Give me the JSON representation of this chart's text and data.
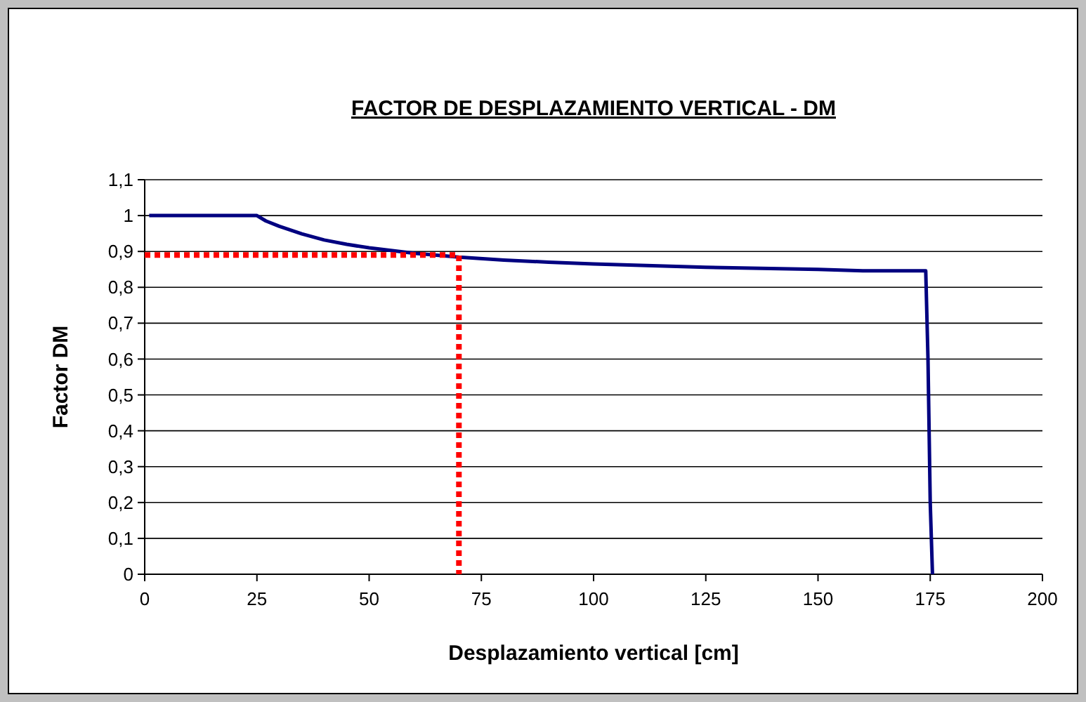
{
  "chart_data": {
    "type": "line",
    "title": "FACTOR DE DESPLAZAMIENTO VERTICAL - DM",
    "xlabel": "Desplazamiento vertical [cm]",
    "ylabel": "Factor DM",
    "xlim": [
      0,
      200
    ],
    "xticks": [
      0,
      25,
      50,
      75,
      100,
      125,
      150,
      175,
      200
    ],
    "ylim": [
      0,
      1.1
    ],
    "yticks": [
      "0",
      {
        "value": 0.1,
        "label": "0,1"
      },
      {
        "value": 0.2,
        "label": "0,2"
      },
      {
        "value": 0.3,
        "label": "0,3"
      },
      {
        "value": 0.4,
        "label": "0,4"
      },
      {
        "value": 0.5,
        "label": "0,5"
      },
      {
        "value": 0.6,
        "label": "0,6"
      },
      {
        "value": 0.7,
        "label": "0,7"
      },
      {
        "value": 0.8,
        "label": "0,8"
      },
      {
        "value": 0.9,
        "label": "0,9"
      },
      "1",
      {
        "value": 1.1,
        "label": "1,1"
      }
    ],
    "grid": "y",
    "marker": "none",
    "series": [
      {
        "color": "#000080",
        "line_style": "solid",
        "x": [
          1,
          25,
          27,
          30,
          35,
          40,
          45,
          50,
          60,
          70,
          80,
          90,
          100,
          125,
          150,
          160,
          174,
          174.5,
          175,
          175.5
        ],
        "values": [
          1,
          1,
          0.985,
          0.97,
          0.949,
          0.932,
          0.92,
          0.91,
          0.895,
          0.884,
          0.876,
          0.87,
          0.865,
          0.856,
          0.85,
          0.846,
          0.846,
          0.6,
          0.2,
          0
        ]
      },
      {
        "color": "#ff0000",
        "line_style": "dotted",
        "x": [
          0,
          70,
          70
        ],
        "values": [
          0.89,
          0.89,
          0
        ]
      }
    ]
  }
}
